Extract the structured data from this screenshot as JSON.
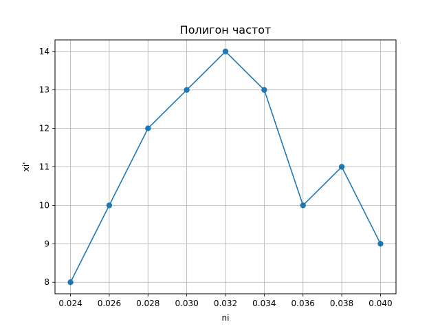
{
  "chart_data": {
    "type": "line",
    "title": "Полигон частот",
    "xlabel": "ni",
    "ylabel": "xi'",
    "x": [
      0.024,
      0.026,
      0.028,
      0.03,
      0.032,
      0.034,
      0.036,
      0.038,
      0.04
    ],
    "series": [
      {
        "name": "",
        "values": [
          8,
          10,
          12,
          13,
          14,
          13,
          10,
          11,
          9
        ]
      }
    ],
    "x_tick_values": [
      0.024,
      0.026,
      0.028,
      0.03,
      0.032,
      0.034,
      0.036,
      0.038,
      0.04
    ],
    "x_tick_labels": [
      "0.024",
      "0.026",
      "0.028",
      "0.030",
      "0.032",
      "0.034",
      "0.036",
      "0.038",
      "0.040"
    ],
    "y_tick_values": [
      8,
      9,
      10,
      11,
      12,
      13,
      14
    ],
    "y_tick_labels": [
      "8",
      "9",
      "10",
      "11",
      "12",
      "13",
      "14"
    ],
    "xlim": [
      0.0232,
      0.0408
    ],
    "ylim": [
      7.7,
      14.3
    ],
    "grid": true,
    "markers": true,
    "colors": {
      "series": "#1f77b4",
      "grid": "#b0b0b0",
      "axes": "#000000"
    }
  }
}
